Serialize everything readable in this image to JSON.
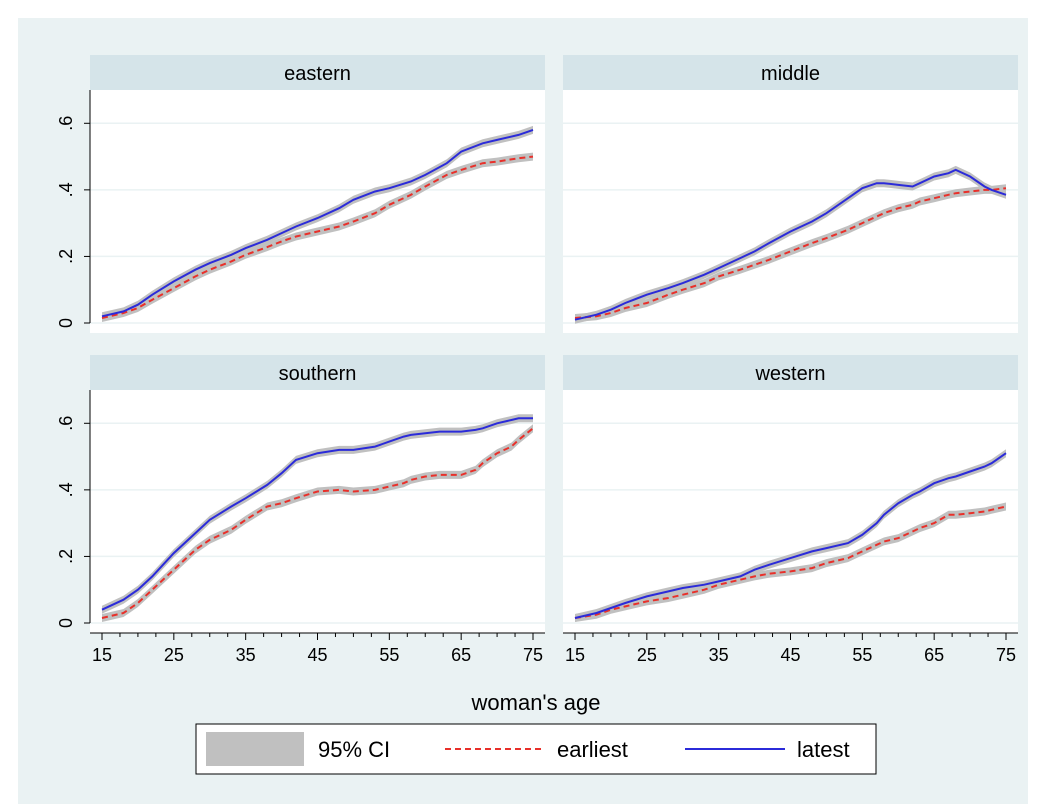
{
  "chart_data": {
    "type": "line",
    "xlabel": "woman's age",
    "ylabel": "",
    "xlim": [
      15,
      75
    ],
    "ylim": [
      0,
      0.7
    ],
    "x_ticks": [
      15,
      25,
      35,
      45,
      55,
      65,
      75
    ],
    "y_ticks": [
      0,
      0.2,
      0.4,
      0.6
    ],
    "y_tick_labels": [
      "0",
      ".2",
      ".4",
      ".6"
    ],
    "legend": {
      "position": "bottom",
      "entries": [
        {
          "label": "95% CI",
          "kind": "band",
          "color": "#c0c0c0"
        },
        {
          "label": "earliest",
          "kind": "dashed-line",
          "color": "#e8302a"
        },
        {
          "label": "latest",
          "kind": "line",
          "color": "#2b2bd9"
        }
      ]
    },
    "ci_halfwidth": 0.012,
    "panels": [
      {
        "title": "eastern",
        "x": [
          15,
          18,
          20,
          22,
          25,
          28,
          30,
          33,
          35,
          38,
          40,
          42,
          45,
          48,
          50,
          53,
          55,
          58,
          60,
          63,
          65,
          68,
          70,
          73,
          75
        ],
        "series": [
          {
            "name": "earliest",
            "values": [
              0.015,
              0.03,
              0.045,
              0.07,
              0.105,
              0.14,
              0.16,
              0.185,
              0.205,
              0.228,
              0.245,
              0.26,
              0.275,
              0.29,
              0.305,
              0.33,
              0.355,
              0.385,
              0.41,
              0.445,
              0.46,
              0.48,
              0.485,
              0.495,
              0.5
            ]
          },
          {
            "name": "latest",
            "values": [
              0.02,
              0.035,
              0.055,
              0.085,
              0.125,
              0.16,
              0.18,
              0.205,
              0.225,
              0.25,
              0.27,
              0.29,
              0.315,
              0.345,
              0.37,
              0.395,
              0.405,
              0.425,
              0.445,
              0.48,
              0.515,
              0.54,
              0.55,
              0.565,
              0.58
            ]
          }
        ]
      },
      {
        "title": "middle",
        "x": [
          15,
          18,
          20,
          22,
          25,
          28,
          30,
          33,
          35,
          38,
          40,
          42,
          45,
          48,
          50,
          53,
          55,
          57,
          58,
          60,
          62,
          63,
          65,
          67,
          68,
          70,
          72,
          73,
          75
        ],
        "series": [
          {
            "name": "earliest",
            "values": [
              0.015,
              0.02,
              0.03,
              0.045,
              0.06,
              0.085,
              0.1,
              0.12,
              0.14,
              0.16,
              0.175,
              0.19,
              0.215,
              0.24,
              0.255,
              0.28,
              0.3,
              0.32,
              0.33,
              0.345,
              0.355,
              0.365,
              0.375,
              0.385,
              0.39,
              0.395,
              0.4,
              0.4,
              0.405
            ]
          },
          {
            "name": "latest",
            "values": [
              0.01,
              0.025,
              0.04,
              0.06,
              0.085,
              0.105,
              0.12,
              0.145,
              0.165,
              0.195,
              0.215,
              0.24,
              0.275,
              0.305,
              0.33,
              0.375,
              0.405,
              0.42,
              0.42,
              0.415,
              0.41,
              0.42,
              0.44,
              0.45,
              0.46,
              0.44,
              0.41,
              0.4,
              0.385
            ]
          }
        ]
      },
      {
        "title": "southern",
        "x": [
          15,
          18,
          20,
          22,
          25,
          28,
          30,
          33,
          35,
          38,
          40,
          42,
          45,
          48,
          50,
          53,
          55,
          57,
          58,
          60,
          62,
          63,
          65,
          67,
          68,
          70,
          72,
          73,
          75
        ],
        "series": [
          {
            "name": "earliest",
            "values": [
              0.015,
              0.03,
              0.06,
              0.1,
              0.16,
              0.22,
              0.25,
              0.28,
              0.31,
              0.35,
              0.36,
              0.375,
              0.395,
              0.4,
              0.395,
              0.4,
              0.41,
              0.42,
              0.43,
              0.44,
              0.445,
              0.445,
              0.445,
              0.46,
              0.48,
              0.51,
              0.53,
              0.55,
              0.585
            ]
          },
          {
            "name": "latest",
            "values": [
              0.04,
              0.07,
              0.1,
              0.14,
              0.21,
              0.27,
              0.31,
              0.35,
              0.375,
              0.415,
              0.45,
              0.49,
              0.51,
              0.52,
              0.52,
              0.53,
              0.545,
              0.56,
              0.565,
              0.57,
              0.575,
              0.575,
              0.575,
              0.58,
              0.585,
              0.6,
              0.61,
              0.615,
              0.615
            ]
          }
        ]
      },
      {
        "title": "western",
        "x": [
          15,
          18,
          20,
          22,
          25,
          28,
          30,
          33,
          35,
          38,
          40,
          42,
          45,
          48,
          50,
          53,
          55,
          57,
          58,
          60,
          62,
          63,
          65,
          67,
          68,
          70,
          72,
          73,
          75
        ],
        "series": [
          {
            "name": "earliest",
            "values": [
              0.015,
              0.025,
              0.04,
              0.05,
              0.065,
              0.075,
              0.085,
              0.1,
              0.115,
              0.13,
              0.14,
              0.148,
              0.155,
              0.165,
              0.18,
              0.195,
              0.215,
              0.235,
              0.245,
              0.255,
              0.275,
              0.285,
              0.3,
              0.325,
              0.325,
              0.33,
              0.335,
              0.34,
              0.35
            ]
          },
          {
            "name": "latest",
            "values": [
              0.015,
              0.03,
              0.045,
              0.06,
              0.08,
              0.095,
              0.105,
              0.115,
              0.125,
              0.14,
              0.16,
              0.175,
              0.195,
              0.215,
              0.225,
              0.24,
              0.265,
              0.3,
              0.325,
              0.36,
              0.385,
              0.395,
              0.42,
              0.435,
              0.44,
              0.455,
              0.47,
              0.48,
              0.51
            ]
          }
        ]
      }
    ]
  }
}
